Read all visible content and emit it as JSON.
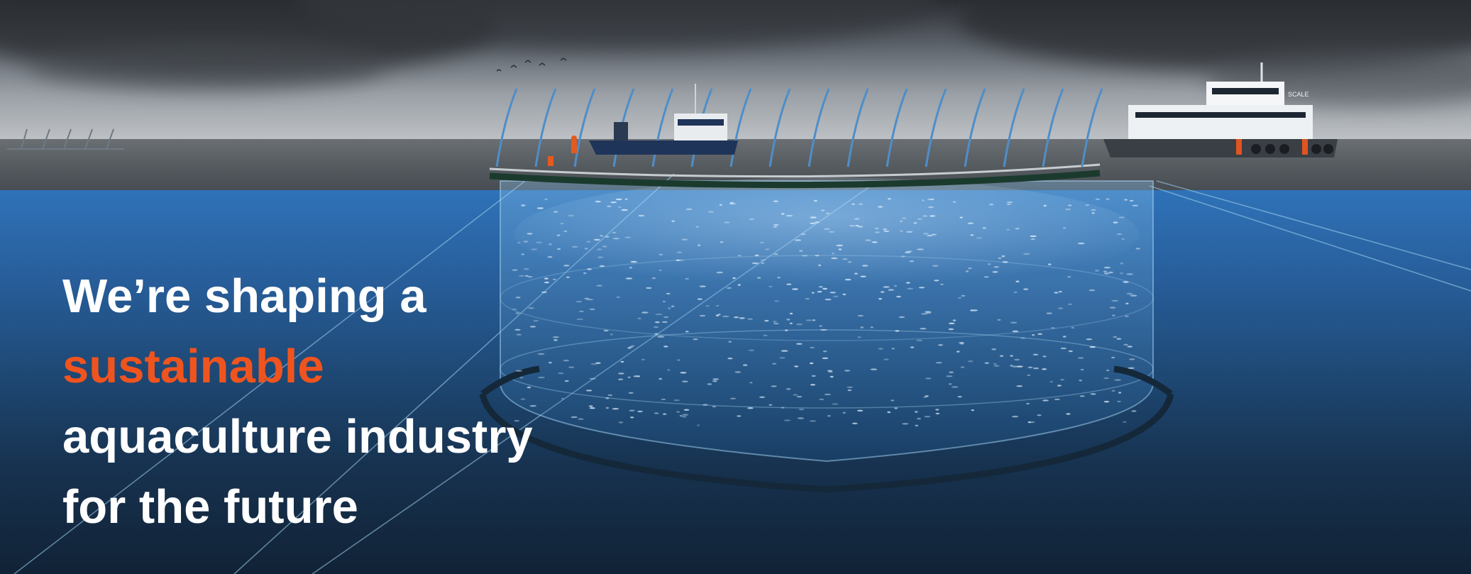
{
  "hero": {
    "headline": {
      "line1": "We’re shaping a",
      "line2_accent": "sustainable",
      "line3": "aquaculture industry",
      "line4": "for the future"
    },
    "accent_color": "#f0541e",
    "text_color": "#ffffff",
    "vessel_label": "SCALE"
  }
}
